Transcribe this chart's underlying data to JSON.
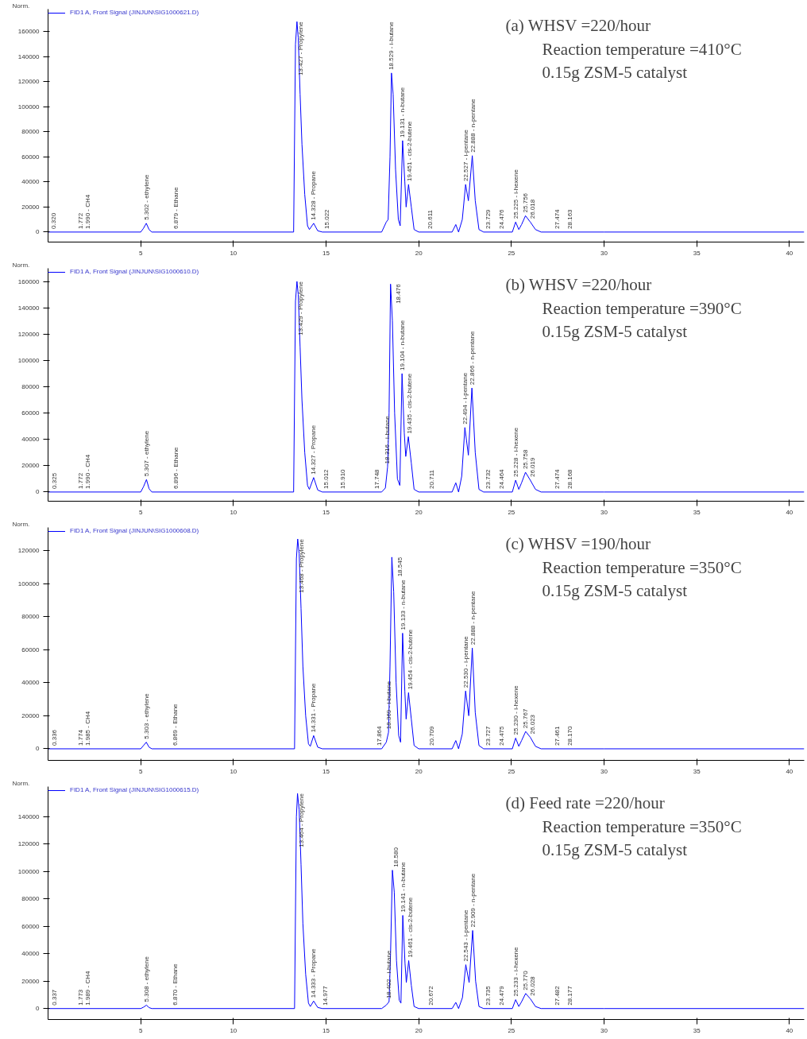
{
  "chart_data": [
    {
      "type": "line",
      "ylabel": "Norm.",
      "legend": "top left",
      "xlim": [
        0,
        40.8
      ],
      "xticks": [
        5,
        10,
        15,
        20,
        25,
        30,
        35,
        40
      ],
      "ylim": [
        -8000,
        178000
      ],
      "yticks": [
        0,
        20000,
        40000,
        60000,
        80000,
        100000,
        120000,
        140000,
        160000
      ],
      "series": [
        {
          "name": "FID1 A, Front Signal (JINJUN\\SIG1000621.D)",
          "color": "#0000ff",
          "x": [
            0,
            5.0,
            5.15,
            5.3,
            5.45,
            5.6,
            13.25,
            13.35,
            13.43,
            13.5,
            13.6,
            13.7,
            13.85,
            14.0,
            14.1,
            14.33,
            14.55,
            14.8,
            18.0,
            18.25,
            18.35,
            18.45,
            18.53,
            18.62,
            18.75,
            18.9,
            19.0,
            19.13,
            19.25,
            19.32,
            19.45,
            19.6,
            19.75,
            20.0,
            21.8,
            22.0,
            22.15,
            22.35,
            22.53,
            22.68,
            22.89,
            23.05,
            23.25,
            23.5,
            25.05,
            25.23,
            25.4,
            25.55,
            25.76,
            26.02,
            26.3,
            26.6,
            30,
            40.8
          ],
          "values": [
            0,
            0,
            3000,
            7000,
            2000,
            0,
            0,
            150000,
            168000,
            155000,
            110000,
            70000,
            30000,
            5000,
            2000,
            7000,
            1000,
            0,
            0,
            8000,
            10000,
            60000,
            127000,
            110000,
            50000,
            10000,
            5000,
            73000,
            40000,
            20000,
            38000,
            20000,
            2000,
            0,
            0,
            6000,
            0,
            10000,
            38000,
            25000,
            61000,
            25000,
            2000,
            0,
            0,
            8000,
            2000,
            6000,
            13000,
            8000,
            2000,
            0,
            0,
            0
          ]
        }
      ],
      "annotations": [
        "(a) WHSV =220/hour",
        "Reaction temperature =410°C",
        "0.15g ZSM-5 catalyst",
        {
          "text": "0.320",
          "x": 0.32,
          "y": 0
        },
        {
          "text": "1.772",
          "x": 1.772,
          "y": 0
        },
        {
          "text": "1.990 - CH4",
          "x": 1.99,
          "y": 0
        },
        {
          "text": "5.302 - ethylene",
          "x": 5.302,
          "y": 7000
        },
        {
          "text": "6.879 - Ethane",
          "x": 6.879,
          "y": 0
        },
        {
          "text": "13.427 - Propylene",
          "x": 13.427,
          "y": 168000
        },
        {
          "text": "14.328 - Propane",
          "x": 14.328,
          "y": 7000
        },
        {
          "text": "15.022",
          "x": 15.022,
          "y": 0
        },
        {
          "text": "18.529 - i-butane",
          "x": 18.529,
          "y": 127000
        },
        {
          "text": "19.131 - n-butane",
          "x": 19.131,
          "y": 73000
        },
        {
          "text": "19.451 - cis-2-butene",
          "x": 19.451,
          "y": 38000
        },
        {
          "text": "20.611",
          "x": 20.611,
          "y": 0
        },
        {
          "text": "22.527 - i-pentane",
          "x": 22.527,
          "y": 38000
        },
        {
          "text": "22.888 - n-pentane",
          "x": 22.888,
          "y": 61000
        },
        {
          "text": "23.729",
          "x": 23.729,
          "y": 0
        },
        {
          "text": "24.476",
          "x": 24.476,
          "y": 0
        },
        {
          "text": "25.225 - i-hexene",
          "x": 25.225,
          "y": 8000
        },
        {
          "text": "25.756",
          "x": 25.756,
          "y": 13000
        },
        {
          "text": "26.018",
          "x": 26.018,
          "y": 8000
        },
        {
          "text": "27.474",
          "x": 27.474,
          "y": 0
        },
        {
          "text": "28.163",
          "x": 28.163,
          "y": 0
        }
      ]
    },
    {
      "type": "line",
      "ylabel": "Norm.",
      "legend": "top left",
      "xlim": [
        0,
        40.8
      ],
      "xticks": [
        5,
        10,
        15,
        20,
        25,
        30,
        35,
        40
      ],
      "ylim": [
        -7000,
        170000
      ],
      "yticks": [
        0,
        20000,
        40000,
        60000,
        80000,
        100000,
        120000,
        140000,
        160000
      ],
      "series": [
        {
          "name": "FID1 A, Front Signal (JINJUN\\SIG1000610.D)",
          "color": "#0000ff",
          "x": [
            0,
            5.0,
            5.15,
            5.31,
            5.45,
            5.6,
            13.25,
            13.35,
            13.43,
            13.5,
            13.6,
            13.7,
            13.85,
            14.0,
            14.1,
            14.33,
            14.55,
            14.8,
            18.0,
            18.2,
            18.32,
            18.4,
            18.48,
            18.58,
            18.7,
            18.85,
            18.98,
            19.1,
            19.22,
            19.3,
            19.44,
            19.6,
            19.75,
            20.0,
            21.8,
            22.0,
            22.15,
            22.32,
            22.49,
            22.68,
            22.87,
            23.05,
            23.25,
            23.5,
            25.05,
            25.23,
            25.4,
            25.55,
            25.76,
            26.02,
            26.3,
            26.6,
            30,
            40.8
          ],
          "values": [
            0,
            0,
            4000,
            9500,
            2500,
            0,
            0,
            145000,
            160000,
            150000,
            110000,
            70000,
            30000,
            5000,
            2000,
            11000,
            1500,
            0,
            0,
            3000,
            19000,
            60000,
            158000,
            130000,
            60000,
            10000,
            5000,
            90000,
            45000,
            27000,
            42000,
            22000,
            2000,
            0,
            0,
            7000,
            0,
            12000,
            49000,
            28000,
            79000,
            30000,
            2000,
            0,
            0,
            9000,
            2000,
            7000,
            15000,
            9000,
            2000,
            0,
            0,
            0
          ]
        }
      ],
      "annotations": [
        "(b) WHSV =220/hour",
        "Reaction temperature =390°C",
        "0.15g ZSM-5 catalyst",
        {
          "text": "0.325",
          "x": 0.325,
          "y": 0
        },
        {
          "text": "1.772",
          "x": 1.772,
          "y": 0
        },
        {
          "text": "1.990 - CH4",
          "x": 1.99,
          "y": 0
        },
        {
          "text": "5.307 - ethylene",
          "x": 5.307,
          "y": 9500
        },
        {
          "text": "6.896 - Ethane",
          "x": 6.896,
          "y": 0
        },
        {
          "text": "13.429 - Propylene",
          "x": 13.429,
          "y": 160000
        },
        {
          "text": "14.327 - Propane",
          "x": 14.327,
          "y": 11000
        },
        {
          "text": "15.012",
          "x": 15.012,
          "y": 0
        },
        {
          "text": "15.910",
          "x": 15.91,
          "y": 0
        },
        {
          "text": "17.748",
          "x": 17.748,
          "y": 0
        },
        {
          "text": "18.316 - i-butane",
          "x": 18.316,
          "y": 19000
        },
        {
          "text": "18.476",
          "x": 18.476,
          "y": 158000
        },
        {
          "text": "19.104 - n-butane",
          "x": 19.104,
          "y": 90000
        },
        {
          "text": "19.435 - cis-2-butene",
          "x": 19.435,
          "y": 42000
        },
        {
          "text": "20.711",
          "x": 20.711,
          "y": 0
        },
        {
          "text": "22.494 - i-pentane",
          "x": 22.494,
          "y": 49000
        },
        {
          "text": "22.866 - n-pentane",
          "x": 22.866,
          "y": 79000
        },
        {
          "text": "23.732",
          "x": 23.732,
          "y": 0
        },
        {
          "text": "24.464",
          "x": 24.464,
          "y": 0
        },
        {
          "text": "25.228 - i-hexene",
          "x": 25.228,
          "y": 9000
        },
        {
          "text": "25.758",
          "x": 25.758,
          "y": 15000
        },
        {
          "text": "26.019",
          "x": 26.019,
          "y": 9000
        },
        {
          "text": "27.474",
          "x": 27.474,
          "y": 0
        },
        {
          "text": "28.168",
          "x": 28.168,
          "y": 0
        }
      ]
    },
    {
      "type": "line",
      "ylabel": "Norm.",
      "legend": "top left",
      "xlim": [
        0,
        40.8
      ],
      "xticks": [
        5,
        10,
        15,
        20,
        25,
        30,
        35,
        40
      ],
      "ylim": [
        -7000,
        134000
      ],
      "yticks": [
        0,
        20000,
        40000,
        60000,
        80000,
        100000,
        120000
      ],
      "series": [
        {
          "name": "FID1 A, Front Signal (JINJUN\\SIG1000608.D)",
          "color": "#0000ff",
          "x": [
            0,
            5.0,
            5.15,
            5.3,
            5.45,
            5.6,
            13.3,
            13.4,
            13.47,
            13.55,
            13.65,
            13.75,
            13.9,
            14.05,
            14.15,
            14.33,
            14.55,
            14.8,
            18.0,
            18.25,
            18.37,
            18.45,
            18.55,
            18.65,
            18.78,
            18.92,
            19.02,
            19.13,
            19.25,
            19.32,
            19.45,
            19.6,
            19.75,
            20.0,
            21.8,
            22.0,
            22.15,
            22.35,
            22.53,
            22.7,
            22.89,
            23.05,
            23.25,
            23.5,
            25.05,
            25.23,
            25.4,
            25.55,
            25.77,
            26.02,
            26.3,
            26.6,
            30,
            40.8
          ],
          "values": [
            0,
            0,
            2000,
            4000,
            1000,
            0,
            0,
            115000,
            127000,
            118000,
            85000,
            50000,
            20000,
            3000,
            1500,
            8000,
            1000,
            0,
            0,
            4000,
            10000,
            50000,
            116000,
            95000,
            40000,
            8000,
            4000,
            70000,
            35000,
            18000,
            34000,
            18000,
            2000,
            0,
            0,
            5000,
            0,
            9000,
            35000,
            20000,
            61000,
            22000,
            2000,
            0,
            0,
            6500,
            1500,
            5000,
            10500,
            7000,
            1500,
            0,
            0,
            0
          ]
        }
      ],
      "annotations": [
        "(c) WHSV =190/hour",
        "Reaction temperature =350°C",
        "0.15g ZSM-5 catalyst",
        {
          "text": "0.336",
          "x": 0.336,
          "y": 0
        },
        {
          "text": "1.774",
          "x": 1.774,
          "y": 0
        },
        {
          "text": "1.985 - CH4",
          "x": 1.985,
          "y": 0
        },
        {
          "text": "5.303 - ethylene",
          "x": 5.303,
          "y": 4000
        },
        {
          "text": "6.869 - Ethane",
          "x": 6.869,
          "y": 0
        },
        {
          "text": "13.468 - Propylene",
          "x": 13.468,
          "y": 127000
        },
        {
          "text": "14.331 - Propane",
          "x": 14.331,
          "y": 8000
        },
        {
          "text": "17.864",
          "x": 17.864,
          "y": 0
        },
        {
          "text": "18.369 - i-butane",
          "x": 18.369,
          "y": 10000
        },
        {
          "text": "18.545",
          "x": 18.545,
          "y": 116000
        },
        {
          "text": "19.133 - n-butane",
          "x": 19.133,
          "y": 70000
        },
        {
          "text": "19.454 - cis-2-butene",
          "x": 19.454,
          "y": 34000
        },
        {
          "text": "20.709",
          "x": 20.709,
          "y": 0
        },
        {
          "text": "22.530 - i-pentane",
          "x": 22.53,
          "y": 35000
        },
        {
          "text": "22.888 - n-pentane",
          "x": 22.888,
          "y": 61000
        },
        {
          "text": "23.727",
          "x": 23.727,
          "y": 0
        },
        {
          "text": "24.475",
          "x": 24.475,
          "y": 0
        },
        {
          "text": "25.230 - i-hexene",
          "x": 25.23,
          "y": 6500
        },
        {
          "text": "25.767",
          "x": 25.767,
          "y": 10500
        },
        {
          "text": "26.023",
          "x": 26.023,
          "y": 7000
        },
        {
          "text": "27.461",
          "x": 27.461,
          "y": 0
        },
        {
          "text": "28.170",
          "x": 28.17,
          "y": 0
        }
      ]
    },
    {
      "type": "line",
      "ylabel": "Norm.",
      "legend": "top left",
      "xlim": [
        0,
        40.8
      ],
      "xticks": [
        5,
        10,
        15,
        20,
        25,
        30,
        35,
        40
      ],
      "ylim": [
        -8000,
        162000
      ],
      "yticks": [
        0,
        20000,
        40000,
        60000,
        80000,
        100000,
        120000,
        140000
      ],
      "series": [
        {
          "name": "FID1 A, Front Signal (JINJUN\\SIG1000615.D)",
          "color": "#0000ff",
          "x": [
            0,
            5.0,
            5.15,
            5.31,
            5.45,
            5.6,
            13.3,
            13.4,
            13.46,
            13.55,
            13.65,
            13.75,
            13.9,
            14.05,
            14.15,
            14.33,
            14.55,
            14.8,
            18.0,
            18.25,
            18.4,
            18.48,
            18.58,
            18.68,
            18.8,
            18.95,
            19.04,
            19.14,
            19.26,
            19.33,
            19.46,
            19.6,
            19.75,
            20.0,
            21.8,
            22.0,
            22.15,
            22.36,
            22.54,
            22.72,
            22.91,
            23.07,
            23.25,
            23.5,
            25.05,
            25.23,
            25.4,
            25.55,
            25.77,
            26.03,
            26.3,
            26.6,
            30,
            40.8
          ],
          "values": [
            0,
            0,
            1000,
            2500,
            700,
            0,
            0,
            140000,
            157000,
            145000,
            105000,
            62000,
            25000,
            4000,
            1500,
            5500,
            800,
            0,
            0,
            2500,
            5000,
            40000,
            101000,
            85000,
            35000,
            6000,
            4000,
            68000,
            33000,
            19000,
            35000,
            17000,
            1500,
            0,
            0,
            4500,
            0,
            8000,
            32000,
            19000,
            57000,
            20000,
            1500,
            0,
            0,
            6500,
            1500,
            5000,
            11000,
            7000,
            1500,
            0,
            0,
            0
          ]
        }
      ],
      "annotations": [
        "(d) Feed rate =220/hour",
        "Reaction temperature =350°C",
        "0.15g ZSM-5 catalyst",
        {
          "text": "0.337",
          "x": 0.337,
          "y": 0
        },
        {
          "text": "1.773",
          "x": 1.773,
          "y": 0
        },
        {
          "text": "1.989 - CH4",
          "x": 1.989,
          "y": 0
        },
        {
          "text": "5.308 - ethylene",
          "x": 5.308,
          "y": 2500
        },
        {
          "text": "6.870 - Ethane",
          "x": 6.87,
          "y": 0
        },
        {
          "text": "13.464 - Propylene",
          "x": 13.464,
          "y": 157000
        },
        {
          "text": "14.333 - Propane",
          "x": 14.333,
          "y": 5500
        },
        {
          "text": "14.977",
          "x": 14.977,
          "y": 0
        },
        {
          "text": "18.402 - i-butane",
          "x": 18.402,
          "y": 5000
        },
        {
          "text": "18.580",
          "x": 18.58,
          "y": 101000
        },
        {
          "text": "19.141 - n-butane",
          "x": 19.141,
          "y": 68000
        },
        {
          "text": "19.461 - cis-2-butene",
          "x": 19.461,
          "y": 35000
        },
        {
          "text": "20.672",
          "x": 20.672,
          "y": 0
        },
        {
          "text": "22.543 - i-pentane",
          "x": 22.543,
          "y": 32000
        },
        {
          "text": "22.909 - n-pentane",
          "x": 22.909,
          "y": 57000
        },
        {
          "text": "23.735",
          "x": 23.735,
          "y": 0
        },
        {
          "text": "24.479",
          "x": 24.479,
          "y": 0
        },
        {
          "text": "25.233 - i-hexene",
          "x": 25.233,
          "y": 6500
        },
        {
          "text": "25.770",
          "x": 25.77,
          "y": 11000
        },
        {
          "text": "26.028",
          "x": 26.028,
          "y": 7000
        },
        {
          "text": "27.482",
          "x": 27.482,
          "y": 0
        },
        {
          "text": "28.177",
          "x": 28.177,
          "y": 0
        }
      ]
    }
  ]
}
